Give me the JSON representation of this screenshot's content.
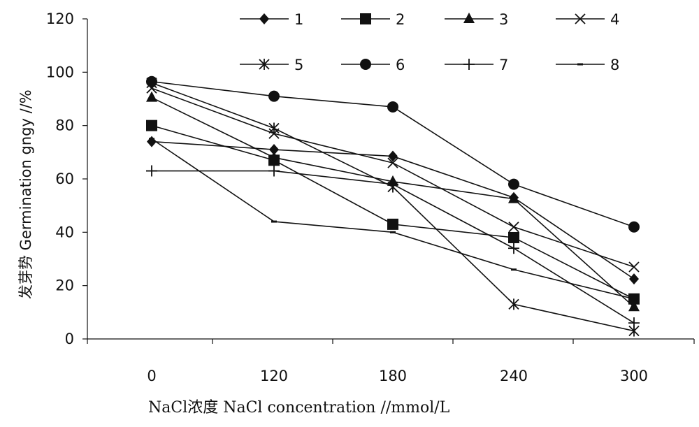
{
  "chart_data": {
    "type": "line",
    "xlabel": "NaCl浓度  NaCl concentration  //mmol/L",
    "ylabel": "发芽势 Germination gngy //%",
    "categories": [
      "0",
      "120",
      "180",
      "240",
      "300"
    ],
    "ylim": [
      0,
      120
    ],
    "yticks": [
      "0",
      "20",
      "40",
      "60",
      "80",
      "100",
      "120"
    ],
    "grid": false,
    "legend_position": "top",
    "series": [
      {
        "name": "1",
        "marker": "diamond",
        "values": [
          74,
          71,
          68.5,
          53,
          22.5
        ]
      },
      {
        "name": "2",
        "marker": "square",
        "values": [
          80,
          67,
          43,
          38,
          15
        ]
      },
      {
        "name": "3",
        "marker": "triangle",
        "values": [
          90.5,
          68,
          59,
          52.5,
          12
        ]
      },
      {
        "name": "4",
        "marker": "x",
        "values": [
          94,
          77,
          66,
          42,
          27
        ]
      },
      {
        "name": "5",
        "marker": "asterisk",
        "values": [
          96,
          79,
          57,
          13,
          3
        ]
      },
      {
        "name": "6",
        "marker": "circle",
        "values": [
          96.5,
          91,
          87,
          58,
          42
        ]
      },
      {
        "name": "7",
        "marker": "plus",
        "values": [
          63,
          63,
          58,
          34,
          6
        ]
      },
      {
        "name": "8",
        "marker": "dash",
        "values": [
          75,
          44,
          40,
          26,
          15
        ]
      }
    ]
  }
}
